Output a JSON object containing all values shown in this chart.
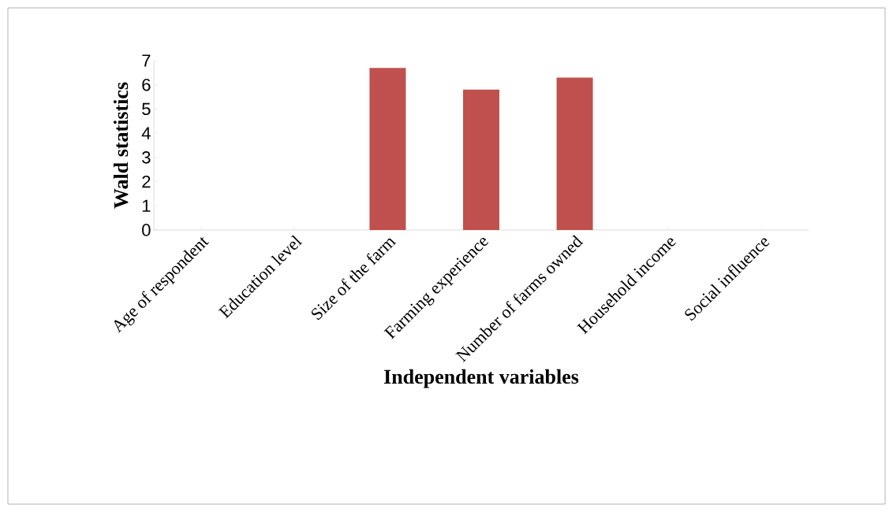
{
  "chart_data": {
    "type": "bar",
    "xlabel": "Independent variables",
    "ylabel": "Wald statistics",
    "categories": [
      "Age of respondent",
      "Education level",
      "Size of the farm",
      "Farming experience",
      "Number of farms owned",
      "Household income",
      "Social influence"
    ],
    "values": [
      0,
      0,
      6.7,
      5.8,
      6.3,
      0,
      0
    ],
    "color": "#c0504d",
    "ylim": [
      0,
      7
    ],
    "yticks": [
      0,
      1,
      2,
      3,
      4,
      5,
      6,
      7
    ],
    "grid": false
  }
}
